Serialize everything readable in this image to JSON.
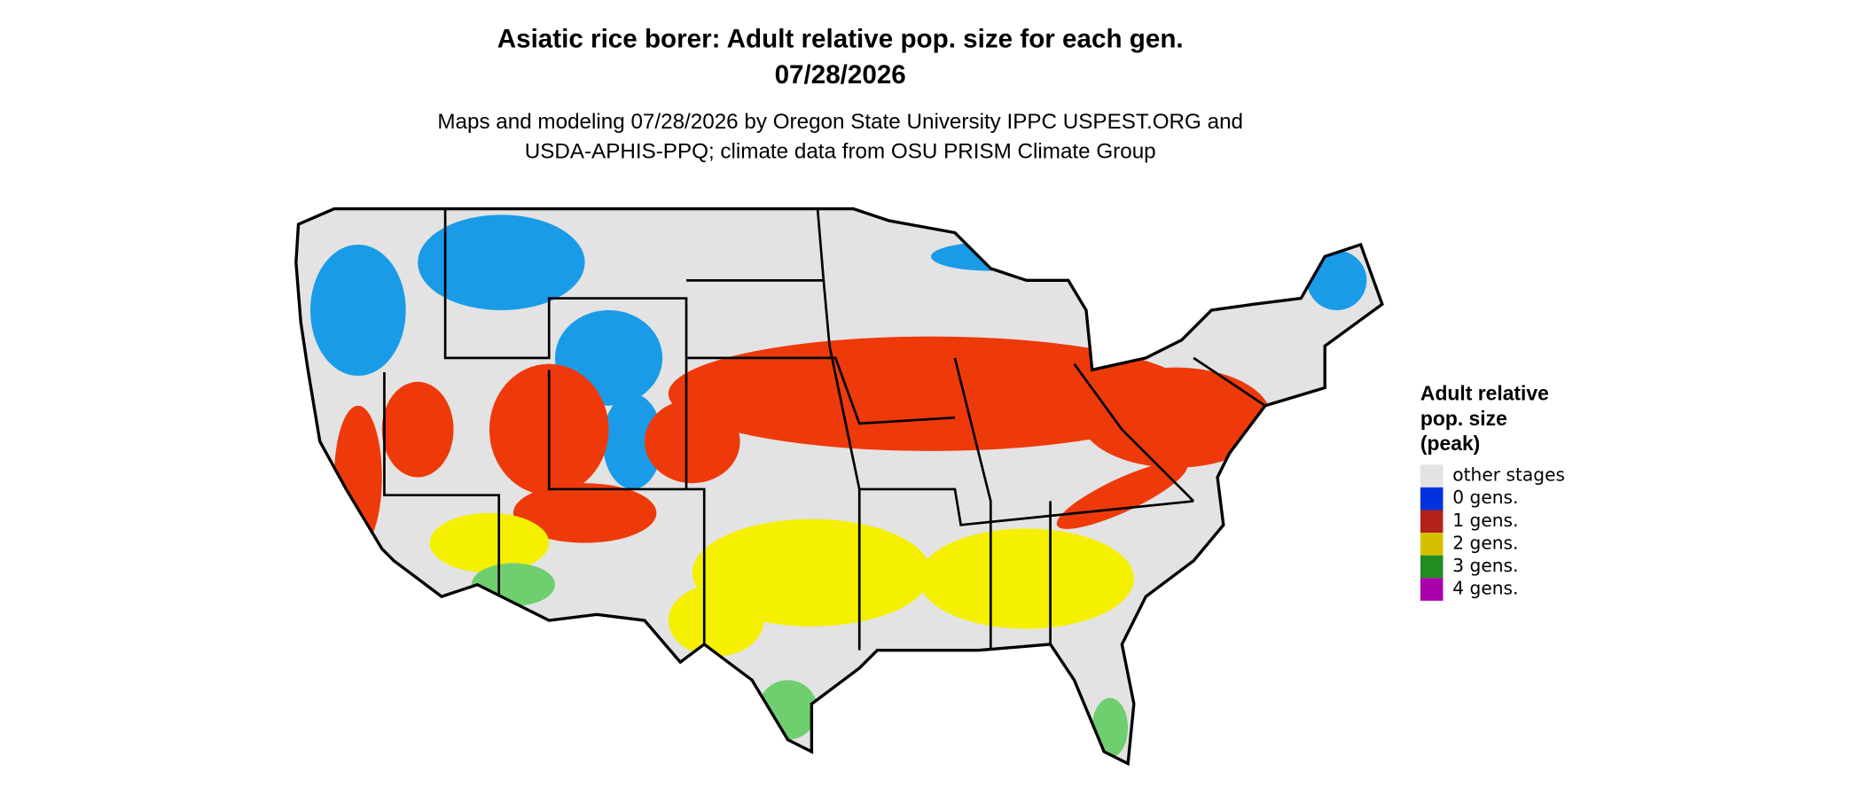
{
  "title": [
    "Asiatic rice borer: Adult relative pop. size for each gen.",
    "07/28/2026"
  ],
  "subtitle": [
    "Maps and modeling 07/28/2026 by Oregon State University IPPC USPEST.ORG and",
    "USDA-APHIS-PPQ; climate data from OSU PRISM Climate Group"
  ],
  "legend": {
    "title": [
      "Adult relative",
      "pop. size",
      "(peak)"
    ],
    "items": [
      {
        "label": "other stages",
        "color": "#e3e3e3"
      },
      {
        "label": "0 gens.",
        "color": "#0033dd"
      },
      {
        "label": "1 gens.",
        "color": "#b22218"
      },
      {
        "label": "2 gens.",
        "color": "#d4c000"
      },
      {
        "label": "3 gens.",
        "color": "#228b22"
      },
      {
        "label": "4 gens.",
        "color": "#aa00aa"
      }
    ]
  }
}
